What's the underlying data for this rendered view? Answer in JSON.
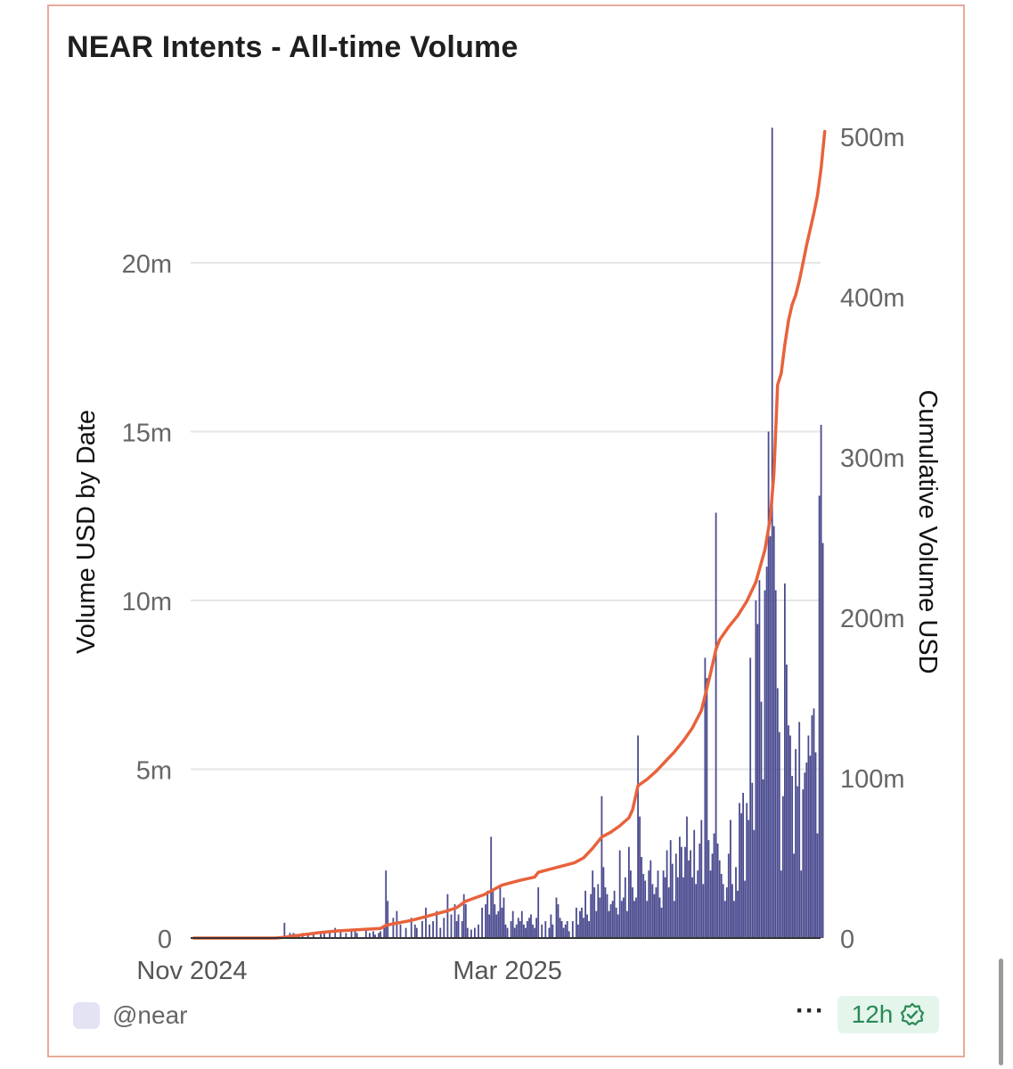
{
  "title": "NEAR Intents - All-time Volume",
  "footer": {
    "handle": "@near",
    "refresh": "12h",
    "more": "···"
  },
  "colors": {
    "bars": "#4a4a8f",
    "line": "#e8623c",
    "grid": "#e6e6e6",
    "border": "#e8aa9a",
    "badge": "#2a8a55"
  },
  "icons": [
    "avatar-icon",
    "more-icon",
    "verified-check-icon"
  ],
  "chart_data": {
    "type": "bar",
    "title": "NEAR Intents - All-time Volume",
    "x_start": "2024-11-01",
    "x_ticks": [
      "Nov 2024",
      "Mar 2025"
    ],
    "y_left": {
      "label": "Volume USD by Date",
      "ylim": [
        0,
        25000000
      ],
      "ticks": [
        "0",
        "5m",
        "10m",
        "15m",
        "20m"
      ]
    },
    "y_right": {
      "label": "Cumulative Volume USD",
      "ylim": [
        0,
        504000000
      ],
      "ticks": [
        "0",
        "100m",
        "200m",
        "300m",
        "400m",
        "500m"
      ]
    },
    "grid": true,
    "series": [
      {
        "name": "Volume USD by Date",
        "type": "bar",
        "axis": "left",
        "points": [
          [
            50,
            0.45
          ],
          [
            53,
            0.15
          ],
          [
            54,
            0.1
          ],
          [
            55,
            0.15
          ],
          [
            56,
            0.12
          ],
          [
            58,
            0.1
          ],
          [
            60,
            0.15
          ],
          [
            63,
            0.12
          ],
          [
            66,
            0.1
          ],
          [
            70,
            0.2
          ],
          [
            72,
            0.15
          ],
          [
            75,
            0.2
          ],
          [
            78,
            0.3
          ],
          [
            81,
            0.2
          ],
          [
            84,
            0.15
          ],
          [
            87,
            0.25
          ],
          [
            89,
            0.2
          ],
          [
            90,
            0.15
          ],
          [
            95,
            0.3
          ],
          [
            97,
            0.15
          ],
          [
            99,
            0.2
          ],
          [
            100,
            0.1
          ],
          [
            102,
            0.15
          ],
          [
            103,
            0.2
          ],
          [
            105,
            0.3
          ],
          [
            106,
            2.0
          ],
          [
            107,
            1.1
          ],
          [
            110,
            0.6
          ],
          [
            112,
            0.8
          ],
          [
            114,
            0.4
          ],
          [
            117,
            0.3
          ],
          [
            120,
            0.6
          ],
          [
            122,
            0.4
          ],
          [
            123,
            0.3
          ],
          [
            126,
            0.5
          ],
          [
            128,
            0.9
          ],
          [
            130,
            0.4
          ],
          [
            132,
            0.5
          ],
          [
            134,
            0.8
          ],
          [
            136,
            0.3
          ],
          [
            138,
            0.6
          ],
          [
            140,
            1.3
          ],
          [
            142,
            0.7
          ],
          [
            144,
            1.0
          ],
          [
            145,
            0.5
          ],
          [
            146,
            0.7
          ],
          [
            148,
            0.5
          ],
          [
            149,
            1.3
          ],
          [
            150,
            1.0
          ],
          [
            151,
            0.3
          ],
          [
            153,
            0.25
          ],
          [
            155,
            0.3
          ],
          [
            157,
            0.4
          ],
          [
            159,
            0.9
          ],
          [
            161,
            1.0
          ],
          [
            162,
            1.4
          ],
          [
            163,
            0.7
          ],
          [
            164,
            3.0
          ],
          [
            165,
            1.4
          ],
          [
            166,
            1.0
          ],
          [
            167,
            0.7
          ],
          [
            168,
            0.8
          ],
          [
            169,
            1.5
          ],
          [
            170,
            0.9
          ],
          [
            171,
            1.2
          ],
          [
            172,
            0.4
          ],
          [
            173,
            0.3
          ],
          [
            175,
            0.5
          ],
          [
            176,
            0.8
          ],
          [
            177,
            0.3
          ],
          [
            178,
            0.4
          ],
          [
            179,
            0.6
          ],
          [
            180,
            0.5
          ],
          [
            181,
            0.8
          ],
          [
            182,
            0.4
          ],
          [
            183,
            0.3
          ],
          [
            184,
            0.5
          ],
          [
            185,
            0.6
          ],
          [
            186,
            0.7
          ],
          [
            187,
            0.4
          ],
          [
            188,
            0.3
          ],
          [
            189,
            0.6
          ],
          [
            190,
            1.5
          ],
          [
            192,
            0.4
          ],
          [
            194,
            0.5
          ],
          [
            196,
            0.3
          ],
          [
            197,
            0.7
          ],
          [
            198,
            0.4
          ],
          [
            200,
            1.2
          ],
          [
            201,
            1.0
          ],
          [
            202,
            0.6
          ],
          [
            203,
            0.5
          ],
          [
            204,
            0.3
          ],
          [
            205,
            0.4
          ],
          [
            206,
            0.5
          ],
          [
            207,
            0.2
          ],
          [
            209,
            0.5
          ],
          [
            211,
            0.9
          ],
          [
            212,
            0.4
          ],
          [
            213,
            0.8
          ],
          [
            214,
            0.9
          ],
          [
            215,
            0.6
          ],
          [
            216,
            1.4
          ],
          [
            217,
            0.7
          ],
          [
            218,
            0.5
          ],
          [
            219,
            1.3
          ],
          [
            220,
            2.0
          ],
          [
            221,
            1.5
          ],
          [
            222,
            0.8
          ],
          [
            223,
            1.6
          ],
          [
            224,
            1.2
          ],
          [
            225,
            4.2
          ],
          [
            226,
            2.1
          ],
          [
            227,
            1.5
          ],
          [
            228,
            1.3
          ],
          [
            229,
            0.8
          ],
          [
            230,
            1.0
          ],
          [
            231,
            1.1
          ],
          [
            232,
            1.4
          ],
          [
            233,
            0.9
          ],
          [
            234,
            0.7
          ],
          [
            235,
            2.6
          ],
          [
            236,
            1.1
          ],
          [
            237,
            1.2
          ],
          [
            238,
            1.8
          ],
          [
            239,
            0.8
          ],
          [
            240,
            2.7
          ],
          [
            241,
            2.0
          ],
          [
            242,
            1.5
          ],
          [
            243,
            1.1
          ],
          [
            244,
            1.2
          ],
          [
            245,
            6.0
          ],
          [
            246,
            3.6
          ],
          [
            247,
            2.4
          ],
          [
            248,
            1.9
          ],
          [
            249,
            1.7
          ],
          [
            250,
            1.1
          ],
          [
            251,
            2.0
          ],
          [
            252,
            2.3
          ],
          [
            253,
            1.6
          ],
          [
            254,
            1.3
          ],
          [
            255,
            1.5
          ],
          [
            256,
            2.0
          ],
          [
            257,
            1.2
          ],
          [
            258,
            0.9
          ],
          [
            259,
            2.0
          ],
          [
            260,
            1.8
          ],
          [
            261,
            2.6
          ],
          [
            262,
            1.5
          ],
          [
            263,
            2.9
          ],
          [
            264,
            2.2
          ],
          [
            265,
            1.1
          ],
          [
            266,
            2.5
          ],
          [
            267,
            1.8
          ],
          [
            268,
            3.0
          ],
          [
            269,
            2.7
          ],
          [
            270,
            1.8
          ],
          [
            271,
            2.7
          ],
          [
            272,
            3.6
          ],
          [
            273,
            2.3
          ],
          [
            274,
            2.6
          ],
          [
            275,
            1.8
          ],
          [
            276,
            3.2
          ],
          [
            277,
            1.6
          ],
          [
            278,
            2.0
          ],
          [
            279,
            2.8
          ],
          [
            280,
            3.5
          ],
          [
            281,
            1.6
          ],
          [
            282,
            8.3
          ],
          [
            283,
            7.7
          ],
          [
            284,
            2.9
          ],
          [
            285,
            2.0
          ],
          [
            286,
            2.5
          ],
          [
            287,
            3.1
          ],
          [
            288,
            12.6
          ],
          [
            289,
            2.8
          ],
          [
            290,
            2.3
          ],
          [
            291,
            1.9
          ],
          [
            292,
            1.6
          ],
          [
            293,
            1.1
          ],
          [
            294,
            1.5
          ],
          [
            295,
            2.5
          ],
          [
            296,
            3.5
          ],
          [
            297,
            1.6
          ],
          [
            298,
            1.1
          ],
          [
            299,
            2.1
          ],
          [
            300,
            1.4
          ],
          [
            301,
            4.0
          ],
          [
            302,
            3.7
          ],
          [
            303,
            4.3
          ],
          [
            304,
            1.7
          ],
          [
            305,
            4.0
          ],
          [
            306,
            3.5
          ],
          [
            307,
            8.3
          ],
          [
            308,
            4.6
          ],
          [
            309,
            3.2
          ],
          [
            310,
            10.0
          ],
          [
            311,
            9.3
          ],
          [
            312,
            10.6
          ],
          [
            313,
            7.0
          ],
          [
            314,
            4.7
          ],
          [
            315,
            10.3
          ],
          [
            316,
            11.0
          ],
          [
            317,
            15.0
          ],
          [
            318,
            11.9
          ],
          [
            319,
            24.0
          ],
          [
            320,
            12.2
          ],
          [
            321,
            10.3
          ],
          [
            322,
            7.4
          ],
          [
            323,
            6.1
          ],
          [
            324,
            2.0
          ],
          [
            325,
            4.2
          ],
          [
            326,
            10.5
          ],
          [
            327,
            8.1
          ],
          [
            328,
            6.3
          ],
          [
            329,
            6.0
          ],
          [
            330,
            4.8
          ],
          [
            331,
            2.5
          ],
          [
            332,
            5.6
          ],
          [
            333,
            4.5
          ],
          [
            334,
            6.4
          ],
          [
            335,
            2.0
          ],
          [
            336,
            4.4
          ],
          [
            337,
            4.9
          ],
          [
            338,
            5.2
          ],
          [
            339,
            6.0
          ],
          [
            340,
            5.4
          ],
          [
            341,
            6.6
          ],
          [
            342,
            6.8
          ],
          [
            343,
            5.5
          ],
          [
            344,
            3.1
          ],
          [
            345,
            13.1
          ],
          [
            346,
            15.2
          ],
          [
            347,
            11.7
          ]
        ]
      },
      {
        "name": "Cumulative Volume USD",
        "type": "line",
        "axis": "right",
        "points": [
          [
            0,
            0
          ],
          [
            45,
            0
          ],
          [
            50,
            0.5
          ],
          [
            60,
            2
          ],
          [
            70,
            3.5
          ],
          [
            80,
            4.5
          ],
          [
            95,
            5.5
          ],
          [
            103,
            6
          ],
          [
            106,
            8
          ],
          [
            120,
            11
          ],
          [
            130,
            14
          ],
          [
            140,
            17
          ],
          [
            145,
            19
          ],
          [
            150,
            23
          ],
          [
            155,
            25
          ],
          [
            160,
            27
          ],
          [
            165,
            30
          ],
          [
            170,
            33
          ],
          [
            180,
            36
          ],
          [
            188,
            38
          ],
          [
            190,
            41
          ],
          [
            200,
            44
          ],
          [
            210,
            47
          ],
          [
            215,
            50
          ],
          [
            220,
            56
          ],
          [
            225,
            63
          ],
          [
            230,
            66
          ],
          [
            235,
            70
          ],
          [
            240,
            75
          ],
          [
            242,
            80
          ],
          [
            245,
            95
          ],
          [
            250,
            99
          ],
          [
            255,
            104
          ],
          [
            260,
            110
          ],
          [
            265,
            116
          ],
          [
            270,
            123
          ],
          [
            275,
            131
          ],
          [
            280,
            142
          ],
          [
            285,
            165
          ],
          [
            288,
            180
          ],
          [
            290,
            186
          ],
          [
            295,
            194
          ],
          [
            300,
            201
          ],
          [
            305,
            210
          ],
          [
            310,
            222
          ],
          [
            315,
            242
          ],
          [
            318,
            262
          ],
          [
            320,
            290
          ],
          [
            322,
            345
          ],
          [
            324,
            352
          ],
          [
            326,
            370
          ],
          [
            328,
            385
          ],
          [
            330,
            395
          ],
          [
            332,
            401
          ],
          [
            334,
            410
          ],
          [
            336,
            421
          ],
          [
            338,
            432
          ],
          [
            340,
            442
          ],
          [
            342,
            452
          ],
          [
            344,
            463
          ],
          [
            346,
            480
          ],
          [
            348,
            503
          ]
        ]
      }
    ]
  }
}
